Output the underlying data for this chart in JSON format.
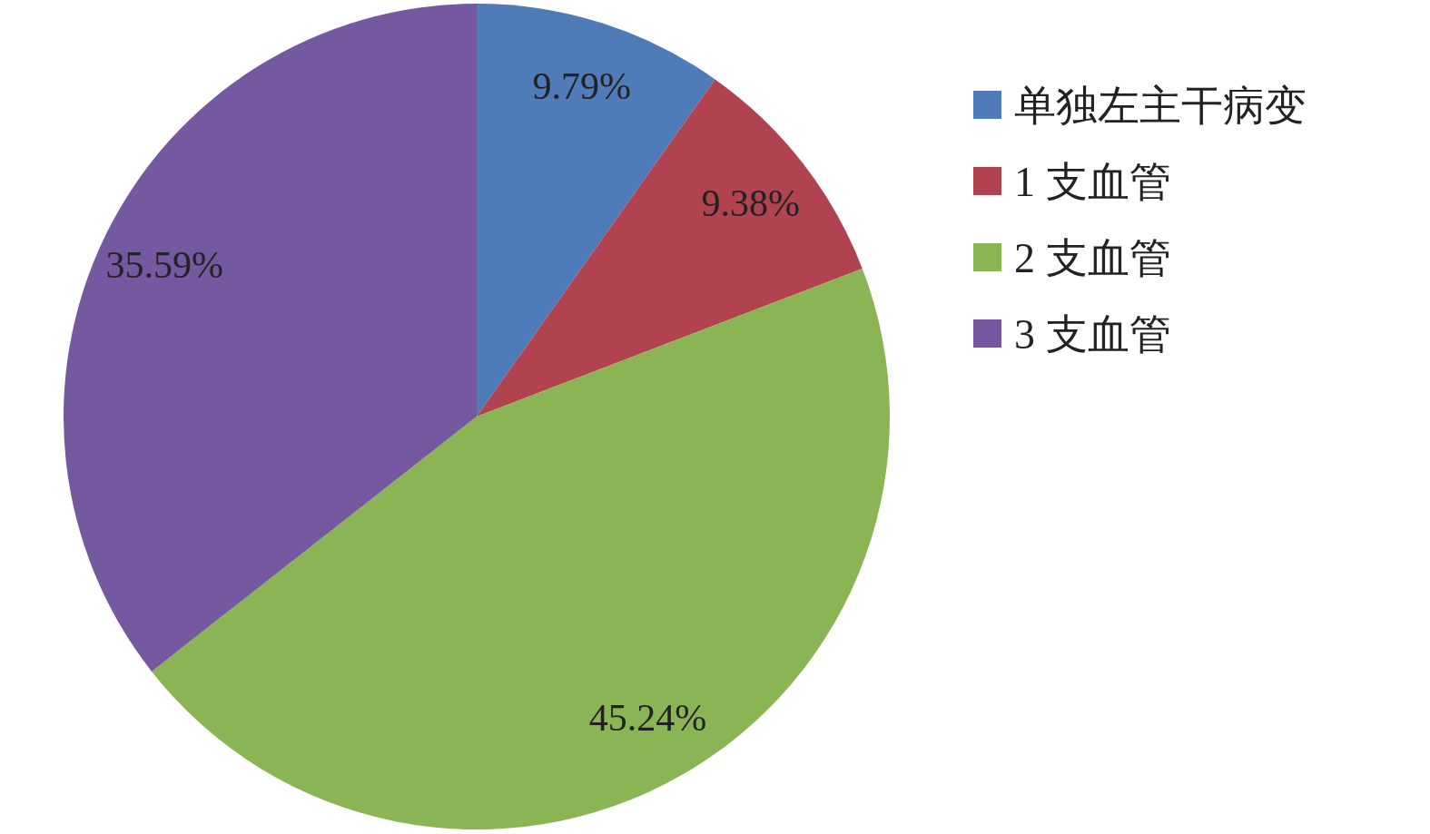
{
  "chart_data": {
    "type": "pie",
    "categories": [
      "单独左主干病变",
      "1 支血管",
      "2 支血管",
      "3 支血管"
    ],
    "values": [
      9.79,
      9.38,
      45.24,
      35.59
    ],
    "colors": [
      "#4f7bb9",
      "#b0434f",
      "#8bb555",
      "#7459a0"
    ],
    "value_labels": [
      "9.79%",
      "9.38%",
      "45.24%",
      "35.59%"
    ],
    "legend": "right"
  }
}
